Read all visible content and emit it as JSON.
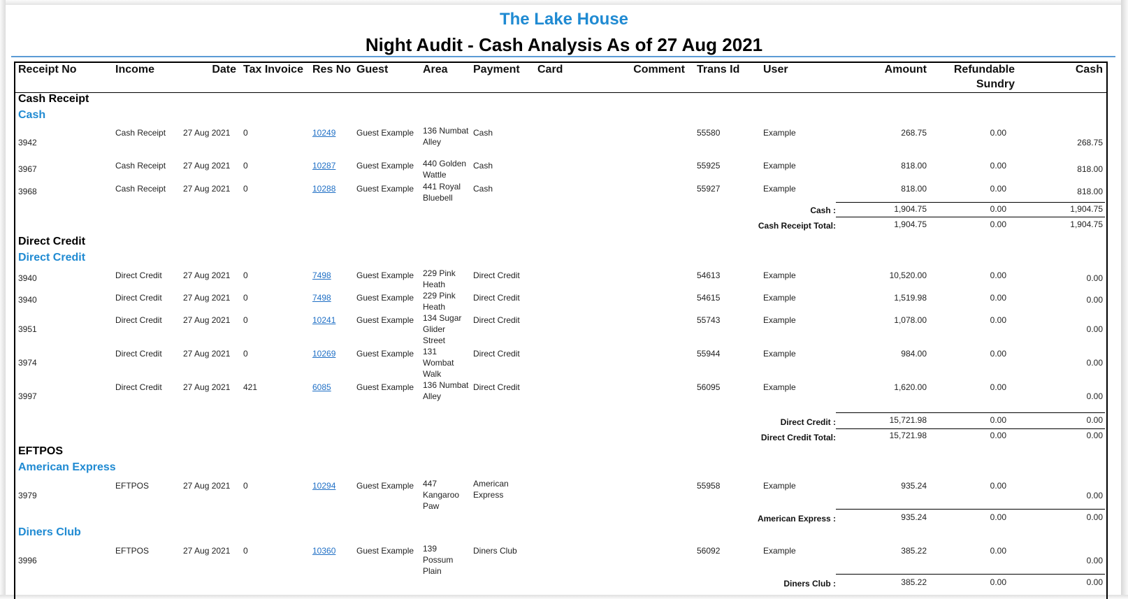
{
  "header": {
    "company": "The Lake House",
    "title": "Night Audit - Cash Analysis As of 27 Aug 2021"
  },
  "columns": {
    "receipt_no": "Receipt No",
    "income": "Income",
    "date": "Date",
    "tax_invoice": "Tax Invoice",
    "res_no": "Res No",
    "guest": "Guest",
    "area": "Area",
    "payment": "Payment",
    "card": "Card",
    "comment": "Comment",
    "trans_id": "Trans Id",
    "user": "User",
    "amount": "Amount",
    "refundable_1": "Refundable",
    "refundable_2": "Sundry",
    "cash": "Cash"
  },
  "groups": [
    {
      "name": "Cash Receipt",
      "subgroups": [
        {
          "name": "Cash",
          "rows": [
            {
              "receipt": "3942",
              "income": "Cash Receipt",
              "date": "27 Aug 2021",
              "tax": "0",
              "res": "10249",
              "guest": "Guest Example",
              "area": "136 Numbat Alley",
              "payment": "Cash",
              "trans": "55580",
              "user": "Example",
              "amount": "268.75",
              "sundry": "0.00",
              "cash": "268.75"
            },
            {
              "receipt": "3967",
              "income": "Cash Receipt",
              "date": "27 Aug 2021",
              "tax": "0",
              "res": "10287",
              "guest": "Guest Example",
              "area": "440 Golden Wattle",
              "payment": "Cash",
              "trans": "55925",
              "user": "Example",
              "amount": "818.00",
              "sundry": "0.00",
              "cash": "818.00"
            },
            {
              "receipt": "3968",
              "income": "Cash Receipt",
              "date": "27 Aug 2021",
              "tax": "0",
              "res": "10288",
              "guest": "Guest Example",
              "area": "441 Royal Bluebell",
              "payment": "Cash",
              "trans": "55927",
              "user": "Example",
              "amount": "818.00",
              "sundry": "0.00",
              "cash": "818.00"
            }
          ],
          "subtotal": {
            "label": "Cash :",
            "amount": "1,904.75",
            "sundry": "0.00",
            "cash": "1,904.75"
          }
        }
      ],
      "total": {
        "label": "Cash Receipt Total:",
        "amount": "1,904.75",
        "sundry": "0.00",
        "cash": "1,904.75"
      }
    },
    {
      "name": "Direct Credit",
      "subgroups": [
        {
          "name": "Direct Credit",
          "rows": [
            {
              "receipt": "3940",
              "income": "Direct Credit",
              "date": "27 Aug 2021",
              "tax": "0",
              "res": "7498",
              "guest": "Guest Example",
              "area": "229 Pink Heath",
              "payment": "Direct Credit",
              "trans": "54613",
              "user": "Example",
              "amount": "10,520.00",
              "sundry": "0.00",
              "cash": "0.00"
            },
            {
              "receipt": "3940",
              "income": "Direct Credit",
              "date": "27 Aug 2021",
              "tax": "0",
              "res": "7498",
              "guest": "Guest Example",
              "area": "229 Pink Heath",
              "payment": "Direct Credit",
              "trans": "54615",
              "user": "Example",
              "amount": "1,519.98",
              "sundry": "0.00",
              "cash": "0.00"
            },
            {
              "receipt": "3951",
              "income": "Direct Credit",
              "date": "27 Aug 2021",
              "tax": "0",
              "res": "10241",
              "guest": "Guest Example",
              "area": "134 Sugar Glider Street",
              "payment": "Direct Credit",
              "trans": "55743",
              "user": "Example",
              "amount": "1,078.00",
              "sundry": "0.00",
              "cash": "0.00"
            },
            {
              "receipt": "3974",
              "income": "Direct Credit",
              "date": "27 Aug 2021",
              "tax": "0",
              "res": "10269",
              "guest": "Guest Example",
              "area": "131 Wombat Walk",
              "payment": "Direct Credit",
              "trans": "55944",
              "user": "Example",
              "amount": "984.00",
              "sundry": "0.00",
              "cash": "0.00"
            },
            {
              "receipt": "3997",
              "income": "Direct Credit",
              "date": "27 Aug 2021",
              "tax": "421",
              "res": "6085",
              "guest": "Guest Example",
              "area": "136 Numbat Alley",
              "payment": "Direct Credit",
              "trans": "56095",
              "user": "Example",
              "amount": "1,620.00",
              "sundry": "0.00",
              "cash": "0.00"
            }
          ],
          "subtotal": {
            "label": "Direct Credit :",
            "amount": "15,721.98",
            "sundry": "0.00",
            "cash": "0.00"
          }
        }
      ],
      "total": {
        "label": "Direct Credit Total:",
        "amount": "15,721.98",
        "sundry": "0.00",
        "cash": "0.00"
      }
    },
    {
      "name": "EFTPOS",
      "subgroups": [
        {
          "name": "American Express",
          "rows": [
            {
              "receipt": "3979",
              "income": "EFTPOS",
              "date": "27 Aug 2021",
              "tax": "0",
              "res": "10294",
              "guest": "Guest Example",
              "area": "447 Kangaroo Paw",
              "payment": "American Express",
              "trans": "55958",
              "user": "Example",
              "amount": "935.24",
              "sundry": "0.00",
              "cash": "0.00"
            }
          ],
          "subtotal": {
            "label": "American Express :",
            "amount": "935.24",
            "sundry": "0.00",
            "cash": "0.00"
          }
        },
        {
          "name": "Diners Club",
          "rows": [
            {
              "receipt": "3996",
              "income": "EFTPOS",
              "date": "27 Aug 2021",
              "tax": "0",
              "res": "10360",
              "guest": "Guest Example",
              "area": "139 Possum Plain",
              "payment": "Diners Club",
              "trans": "56092",
              "user": "Example",
              "amount": "385.22",
              "sundry": "0.00",
              "cash": "0.00"
            }
          ],
          "subtotal": {
            "label": "Diners Club :",
            "amount": "385.22",
            "sundry": "0.00",
            "cash": "0.00"
          }
        }
      ],
      "total": null
    }
  ]
}
